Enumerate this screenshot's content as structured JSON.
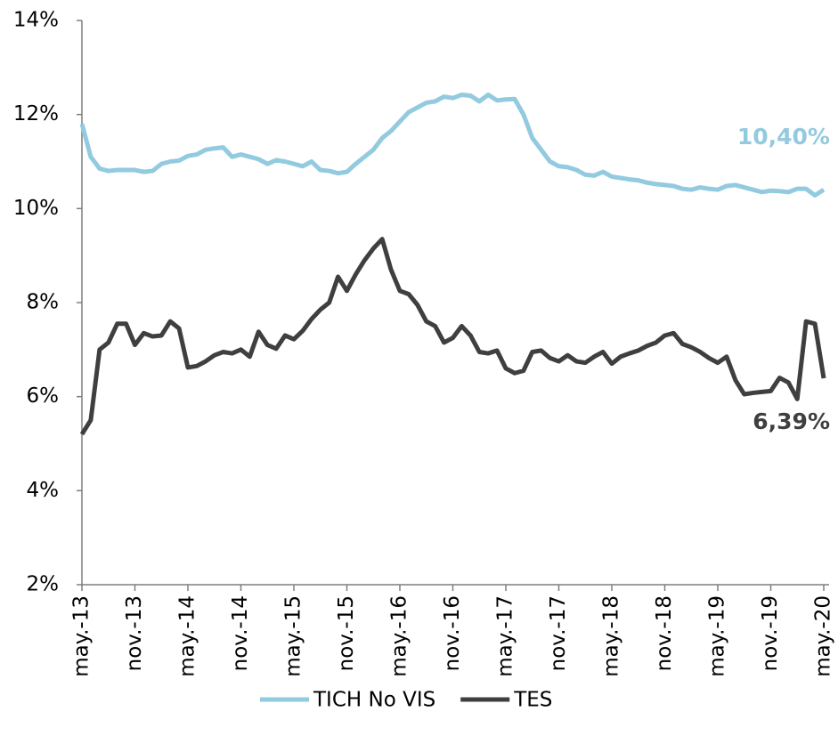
{
  "chart_data": {
    "type": "line",
    "categories": [
      "may.-13",
      null,
      null,
      null,
      null,
      null,
      "nov.-13",
      null,
      null,
      null,
      null,
      null,
      "may.-14",
      null,
      null,
      null,
      null,
      null,
      "nov.-14",
      null,
      null,
      null,
      null,
      null,
      "may.-15",
      null,
      null,
      null,
      null,
      null,
      "nov.-15",
      null,
      null,
      null,
      null,
      null,
      "may.-16",
      null,
      null,
      null,
      null,
      null,
      "nov.-16",
      null,
      null,
      null,
      null,
      null,
      "may.-17",
      null,
      null,
      null,
      null,
      null,
      "nov.-17",
      null,
      null,
      null,
      null,
      null,
      "may.-18",
      null,
      null,
      null,
      null,
      null,
      "nov.-18",
      null,
      null,
      null,
      null,
      null,
      "may.-19",
      null,
      null,
      null,
      null,
      null,
      "nov.-19",
      null,
      null,
      null,
      null,
      null,
      "may.-20"
    ],
    "series": [
      {
        "name": "TICH No VIS",
        "color": "#92cadf",
        "values": [
          11.8,
          11.1,
          10.85,
          10.8,
          10.82,
          10.82,
          10.82,
          10.78,
          10.8,
          10.95,
          11.0,
          11.02,
          11.12,
          11.15,
          11.25,
          11.28,
          11.3,
          11.1,
          11.15,
          11.1,
          11.05,
          10.95,
          11.03,
          11.0,
          10.95,
          10.9,
          11.0,
          10.82,
          10.8,
          10.75,
          10.78,
          10.95,
          11.1,
          11.25,
          11.5,
          11.65,
          11.85,
          12.05,
          12.15,
          12.25,
          12.28,
          12.38,
          12.35,
          12.42,
          12.4,
          12.28,
          12.42,
          12.3,
          12.32,
          12.33,
          12.0,
          11.5,
          11.25,
          11.0,
          10.9,
          10.88,
          10.82,
          10.72,
          10.7,
          10.78,
          10.68,
          10.65,
          10.62,
          10.6,
          10.55,
          10.52,
          10.5,
          10.48,
          10.42,
          10.4,
          10.45,
          10.42,
          10.4,
          10.48,
          10.5,
          10.45,
          10.4,
          10.35,
          10.38,
          10.37,
          10.35,
          10.42,
          10.42,
          10.28,
          10.4
        ],
        "value_labels": [
          null,
          null,
          null,
          null,
          null,
          null,
          null,
          null,
          null,
          null,
          null,
          null,
          null,
          null,
          null,
          null,
          null,
          null,
          null,
          null,
          null,
          null,
          null,
          null,
          null,
          null,
          null,
          null,
          null,
          null,
          null,
          null,
          null,
          null,
          null,
          null,
          null,
          null,
          null,
          null,
          null,
          null,
          null,
          null,
          null,
          null,
          null,
          null,
          null,
          null,
          null,
          null,
          null,
          null,
          null,
          null,
          null,
          null,
          null,
          null,
          null,
          null,
          null,
          null,
          null,
          null,
          null,
          null,
          null,
          null,
          null,
          null,
          null,
          null,
          null,
          null,
          null,
          null,
          null,
          null,
          null,
          null,
          null,
          null,
          "10,40%"
        ]
      },
      {
        "name": "TES",
        "color": "#3f3f3f",
        "values": [
          5.2,
          5.5,
          7.0,
          7.15,
          7.55,
          7.55,
          7.1,
          7.35,
          7.28,
          7.3,
          7.6,
          7.45,
          6.62,
          6.65,
          6.75,
          6.88,
          6.95,
          6.92,
          7.0,
          6.85,
          7.38,
          7.1,
          7.02,
          7.3,
          7.22,
          7.4,
          7.65,
          7.85,
          8.0,
          8.55,
          8.25,
          8.6,
          8.9,
          9.15,
          9.35,
          8.7,
          8.25,
          8.18,
          7.95,
          7.6,
          7.5,
          7.15,
          7.25,
          7.5,
          7.3,
          6.95,
          6.92,
          6.98,
          6.6,
          6.5,
          6.55,
          6.95,
          6.98,
          6.82,
          6.75,
          6.88,
          6.75,
          6.72,
          6.85,
          6.95,
          6.7,
          6.85,
          6.92,
          6.98,
          7.08,
          7.15,
          7.3,
          7.35,
          7.12,
          7.05,
          6.95,
          6.82,
          6.72,
          6.85,
          6.35,
          6.05,
          6.08,
          6.1,
          6.12,
          6.4,
          6.3,
          5.95,
          7.6,
          7.55,
          6.39
        ],
        "value_labels": [
          null,
          null,
          null,
          null,
          null,
          null,
          null,
          null,
          null,
          null,
          null,
          null,
          null,
          null,
          null,
          null,
          null,
          null,
          null,
          null,
          null,
          null,
          null,
          null,
          null,
          null,
          null,
          null,
          null,
          null,
          null,
          null,
          null,
          null,
          null,
          null,
          null,
          null,
          null,
          null,
          null,
          null,
          null,
          null,
          null,
          null,
          null,
          null,
          null,
          null,
          null,
          null,
          null,
          null,
          null,
          null,
          null,
          null,
          null,
          null,
          null,
          null,
          null,
          null,
          null,
          null,
          null,
          null,
          null,
          null,
          null,
          null,
          null,
          null,
          null,
          null,
          null,
          null,
          null,
          null,
          null,
          null,
          null,
          null,
          "6,39%"
        ]
      }
    ],
    "ylim": [
      2,
      14
    ],
    "yticks": [
      {
        "value": 2,
        "label": "2%"
      },
      {
        "value": 4,
        "label": "4%"
      },
      {
        "value": 6,
        "label": "6%"
      },
      {
        "value": 8,
        "label": "8%"
      },
      {
        "value": 10,
        "label": "10%"
      },
      {
        "value": 12,
        "label": "12%"
      },
      {
        "value": 14,
        "label": "14%"
      }
    ],
    "grid": false,
    "legend": "bottom"
  }
}
